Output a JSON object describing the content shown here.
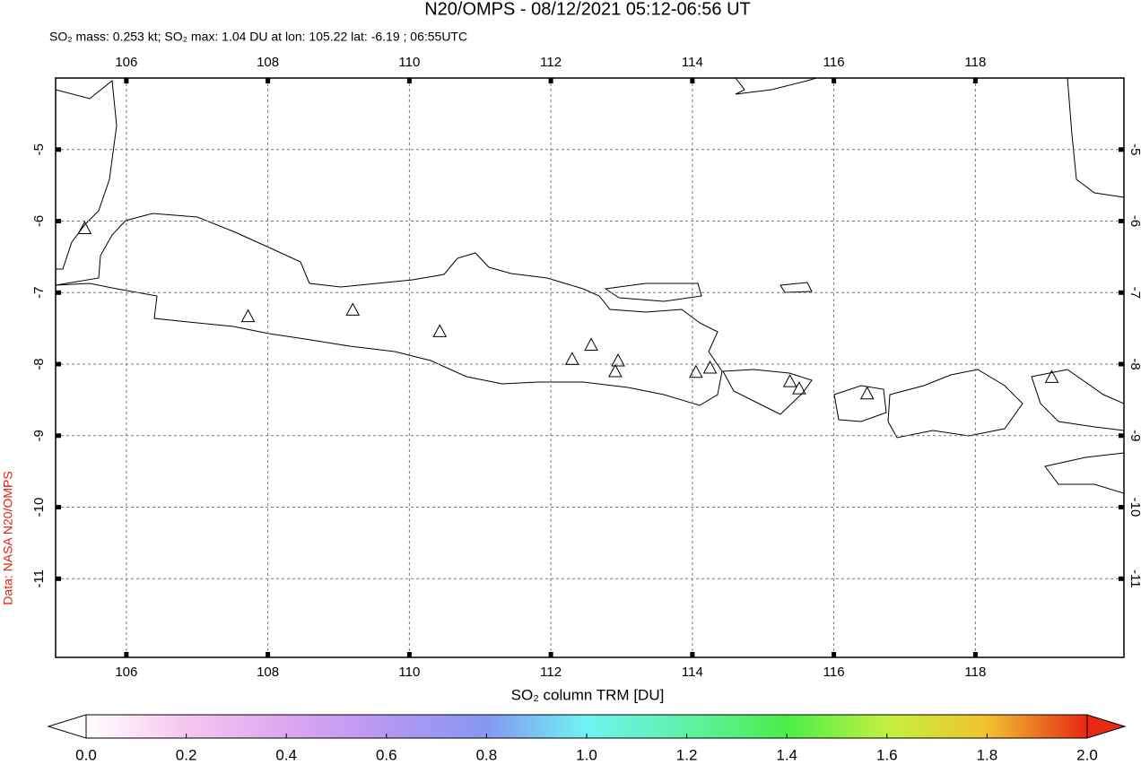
{
  "chart_data": {
    "type": "map",
    "title": "N20/OMPS - 08/12/2021 05:12-06:56 UT",
    "subtitle": "SO₂ mass: 0.253 kt; SO₂ max: 1.04 DU at lon: 105.22 lat: -6.19 ; 06:55UTC",
    "credit": "Data: NASA N20/OMPS",
    "colorbar_label": "SO₂ column TRM [DU]",
    "xlim": [
      105.0,
      120.1
    ],
    "ylim": [
      -12.1,
      -4.0
    ],
    "xticks": [
      106,
      108,
      110,
      112,
      114,
      116,
      118
    ],
    "yticks": [
      -5,
      -6,
      -7,
      -8,
      -9,
      -10,
      -11
    ],
    "grid": true,
    "volcanoes": {
      "color": "#000000",
      "lon": [
        105.41,
        107.72,
        109.2,
        110.43,
        112.3,
        112.57,
        112.95,
        112.91,
        114.05,
        114.25,
        115.38,
        115.51,
        116.47,
        119.08
      ],
      "lat": [
        -6.1,
        -7.33,
        -7.24,
        -7.54,
        -7.93,
        -7.73,
        -7.95,
        -8.1,
        -8.11,
        -8.05,
        -8.24,
        -8.34,
        -8.41,
        -8.18
      ]
    },
    "clim": [
      0,
      2
    ],
    "colormap": [
      "#ffffff",
      "#f6c6ef",
      "#dea6f0",
      "#b497f2",
      "#8597f2",
      "#6ff3f3",
      "#5ef2a6",
      "#48ee48",
      "#c4f040",
      "#f2c230",
      "#e62814"
    ],
    "cticks": [
      {
        "value": 0,
        "label": "0.0"
      },
      {
        "value": 0.2,
        "label": "0.2"
      },
      {
        "value": 0.4,
        "label": "0.4"
      },
      {
        "value": 0.6,
        "label": "0.6"
      },
      {
        "value": 0.8,
        "label": "0.8"
      },
      {
        "value": 1,
        "label": "1.0"
      },
      {
        "value": 1.2,
        "label": "1.2"
      },
      {
        "value": 1.4,
        "label": "1.4"
      },
      {
        "value": 1.6,
        "label": "1.6"
      },
      {
        "value": 1.8,
        "label": "1.8"
      },
      {
        "value": 2,
        "label": "2.0"
      }
    ]
  }
}
